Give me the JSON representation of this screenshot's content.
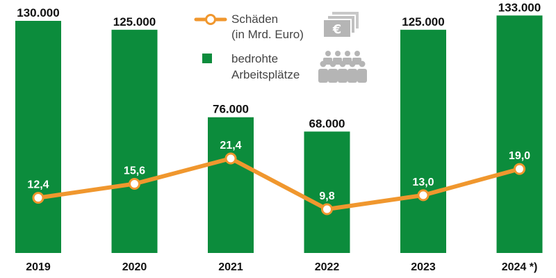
{
  "chart_data": {
    "type": "bar",
    "categories": [
      "2019",
      "2020",
      "2021",
      "2022",
      "2023",
      "2024 *)"
    ],
    "series": [
      {
        "name": "bedrohte Arbeitsplätze",
        "type": "bar",
        "values": [
          130000,
          125000,
          76000,
          68000,
          125000,
          133000
        ],
        "labels": [
          "130.000",
          "125.000",
          "76.000",
          "68.000",
          "125.000",
          "133.000"
        ]
      },
      {
        "name": "Schäden (in Mrd. Euro)",
        "type": "line",
        "values": [
          12.4,
          15.6,
          21.4,
          9.8,
          13.0,
          19.0
        ],
        "labels": [
          "12,4",
          "15,6",
          "21,4",
          "9,8",
          "13,0",
          "19,0"
        ]
      }
    ],
    "legend": {
      "placement": "top-center",
      "line_label_1": "Schäden",
      "line_label_2": "(in Mrd. Euro)",
      "bar_label_1": "bedrohte",
      "bar_label_2": "Arbeitsplätze",
      "line_icon": "money-bills-icon",
      "bar_icon": "people-group-icon"
    },
    "colors": {
      "bar": "#0c8c3c",
      "line": "#f0972e",
      "marker_fill": "#ffffff",
      "icon": "#b5b5b5"
    },
    "bar_ylim": [
      0,
      140000
    ],
    "line_ylim": [
      0,
      28
    ],
    "grid": false
  }
}
